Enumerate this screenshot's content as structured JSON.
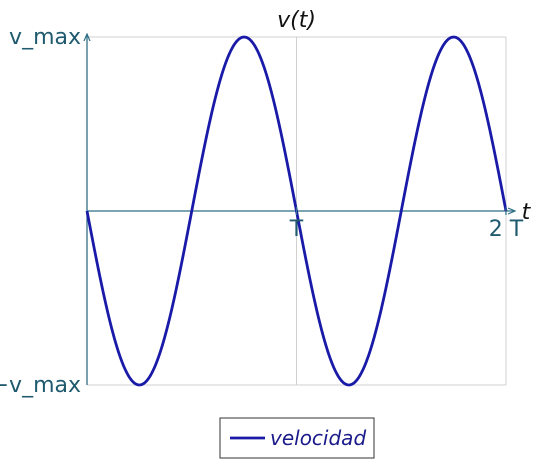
{
  "chart_data": {
    "type": "line",
    "title": "v(t)",
    "xlabel": "t",
    "ylabel": "",
    "x_ticks": [
      {
        "value": 1,
        "label": "T"
      },
      {
        "value": 2,
        "label": "2 T"
      }
    ],
    "y_ticks": [
      {
        "value": 1,
        "label": "v_max"
      },
      {
        "value": -1,
        "label": "−v_max"
      }
    ],
    "xlim": [
      0,
      2
    ],
    "ylim": [
      -1,
      1
    ],
    "grid": true,
    "legend_position": "bottom-center",
    "series": [
      {
        "name": "velocidad",
        "color": "#1a1aa8",
        "function": "-sin(2*pi*x)",
        "x": [
          0,
          0.25,
          0.5,
          0.75,
          1.0,
          1.25,
          1.5,
          1.75,
          2.0
        ],
        "y": [
          0,
          -1,
          0,
          1,
          0,
          -1,
          0,
          1,
          0
        ]
      }
    ],
    "colors": {
      "axis": "#2f6f87",
      "grid": "#d0d0d0",
      "tick_label": "#1f5a6e"
    }
  }
}
